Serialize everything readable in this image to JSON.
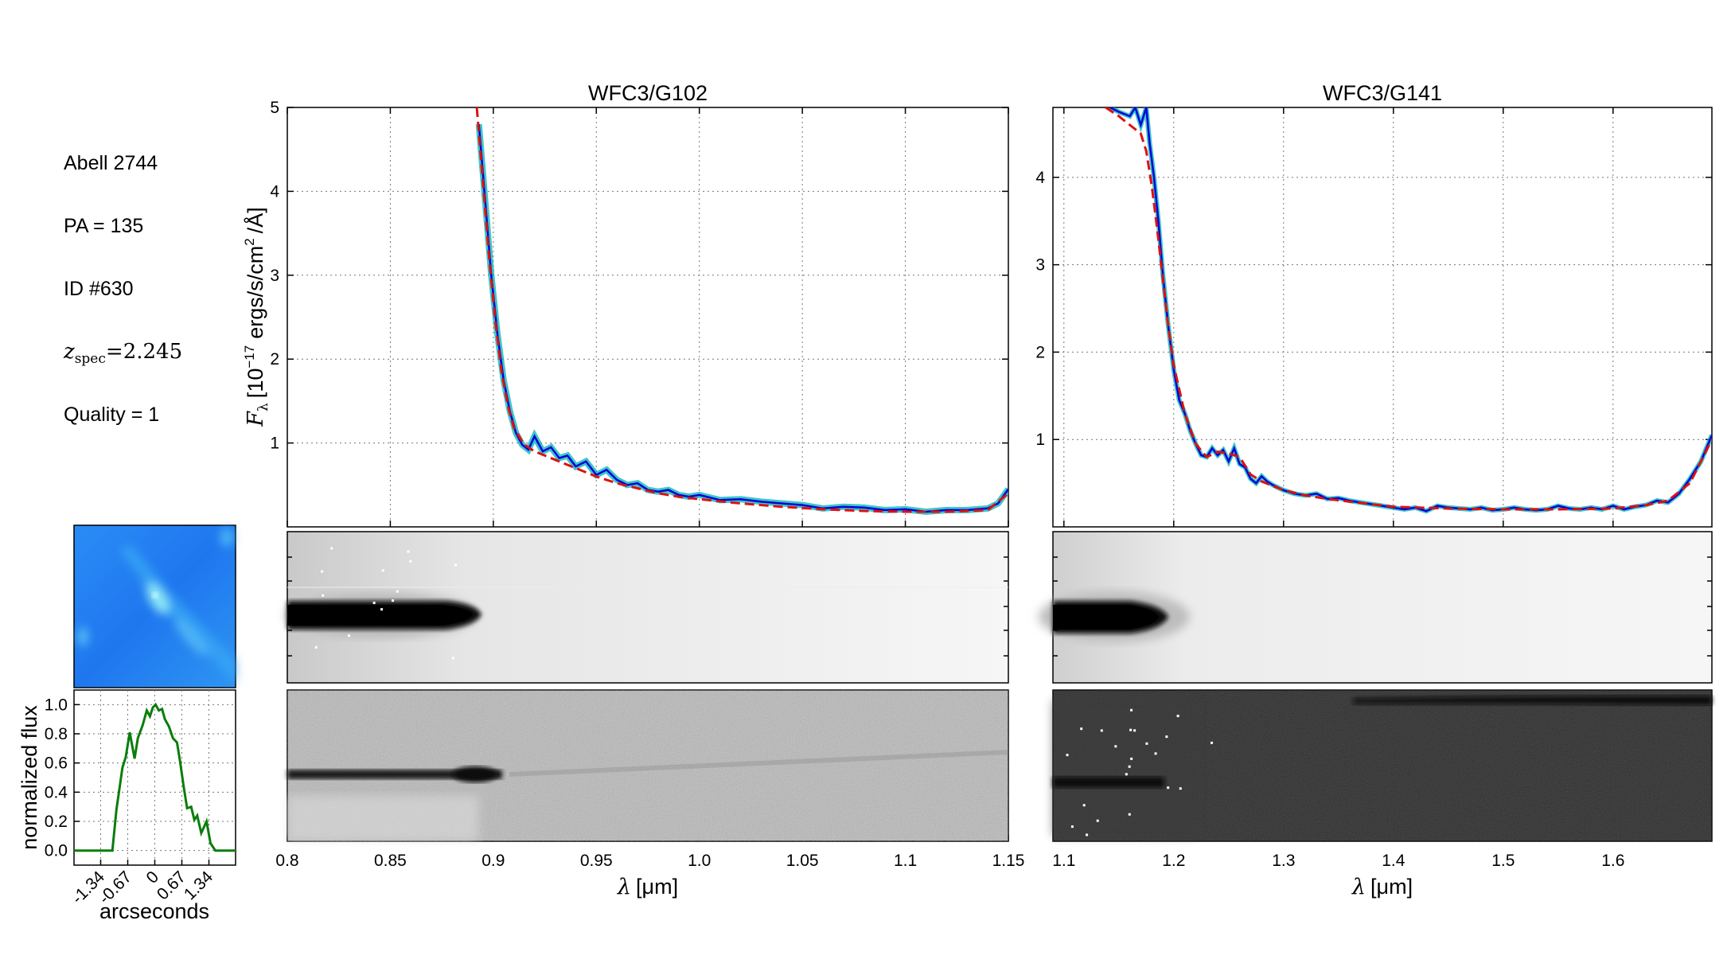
{
  "meta": {
    "field": "Abell 2744",
    "pa": "PA = 135",
    "id": "ID #630",
    "z_symbol": "z",
    "z_sub": "spec",
    "z_value": "=2.245",
    "quality": "Quality = 1"
  },
  "colors": {
    "observed": "#0000dd",
    "observed_error": "#00b3b3",
    "model": "#dd1111",
    "profile": "#0a7d0a",
    "thumb_bg": "#1e7cf0",
    "thumb_streak": "#7fe0f5"
  },
  "chart_data": [
    {
      "id": "g102",
      "type": "line",
      "title": "WFC3/G102",
      "xlabel_symbol": "λ",
      "xlabel_unit": "[μm]",
      "ylabel_main": "F",
      "ylabel_sub": "λ",
      "ylabel_rest": "[10",
      "ylabel_exp": "−17",
      "ylabel_units": "ergs/s/cm",
      "ylabel_sq": "2",
      "ylabel_tail": "/Å]",
      "xlim": [
        0.8,
        1.15
      ],
      "ylim": [
        0,
        5
      ],
      "xticks": [
        0.8,
        0.85,
        0.9,
        0.95,
        1.0,
        1.05,
        1.1,
        1.15
      ],
      "xticklabels": [
        "0.8",
        "0.85",
        "0.9",
        "0.95",
        "1.0",
        "1.05",
        "1.1",
        "1.15"
      ],
      "yticks": [
        1,
        2,
        3,
        4,
        5
      ],
      "yticklabels": [
        "1",
        "2",
        "3",
        "4",
        "5"
      ],
      "grid": true,
      "series": [
        {
          "name": "observed",
          "style": "solid",
          "x": [
            0.893,
            0.896,
            0.899,
            0.902,
            0.905,
            0.908,
            0.911,
            0.914,
            0.917,
            0.92,
            0.924,
            0.928,
            0.932,
            0.936,
            0.94,
            0.945,
            0.95,
            0.955,
            0.96,
            0.965,
            0.97,
            0.975,
            0.98,
            0.985,
            0.99,
            0.995,
            1.0,
            1.01,
            1.02,
            1.03,
            1.04,
            1.05,
            1.06,
            1.07,
            1.08,
            1.09,
            1.1,
            1.11,
            1.12,
            1.13,
            1.14,
            1.145,
            1.15
          ],
          "y": [
            4.8,
            3.9,
            3.0,
            2.3,
            1.75,
            1.38,
            1.12,
            0.98,
            0.92,
            1.08,
            0.9,
            0.95,
            0.82,
            0.85,
            0.72,
            0.78,
            0.62,
            0.68,
            0.56,
            0.5,
            0.52,
            0.44,
            0.42,
            0.44,
            0.38,
            0.36,
            0.38,
            0.32,
            0.33,
            0.3,
            0.28,
            0.26,
            0.22,
            0.24,
            0.23,
            0.2,
            0.21,
            0.18,
            0.2,
            0.2,
            0.22,
            0.28,
            0.45
          ]
        },
        {
          "name": "model",
          "style": "dashed",
          "x": [
            0.892,
            0.895,
            0.898,
            0.901,
            0.904,
            0.907,
            0.91,
            0.915,
            0.92,
            0.93,
            0.94,
            0.95,
            0.96,
            0.97,
            0.98,
            0.99,
            1.0,
            1.02,
            1.04,
            1.06,
            1.08,
            1.1,
            1.12,
            1.14,
            1.15
          ],
          "y": [
            5.0,
            4.1,
            3.2,
            2.45,
            1.85,
            1.45,
            1.18,
            0.98,
            0.9,
            0.8,
            0.7,
            0.6,
            0.52,
            0.46,
            0.4,
            0.36,
            0.33,
            0.28,
            0.24,
            0.21,
            0.19,
            0.18,
            0.18,
            0.2,
            0.4
          ]
        }
      ]
    },
    {
      "id": "g141",
      "type": "line",
      "title": "WFC3/G141",
      "xlabel_symbol": "λ",
      "xlabel_unit": "[μm]",
      "xlim": [
        1.09,
        1.69
      ],
      "ylim": [
        0,
        4.8
      ],
      "xticks": [
        1.1,
        1.2,
        1.3,
        1.4,
        1.5,
        1.6
      ],
      "xticklabels": [
        "1.1",
        "1.2",
        "1.3",
        "1.4",
        "1.5",
        "1.6"
      ],
      "yticks": [
        1,
        2,
        3,
        4
      ],
      "yticklabels": [
        "1",
        "2",
        "3",
        "4"
      ],
      "grid": true,
      "series": [
        {
          "name": "observed",
          "style": "solid",
          "x": [
            1.142,
            1.15,
            1.16,
            1.165,
            1.17,
            1.175,
            1.178,
            1.182,
            1.186,
            1.19,
            1.195,
            1.2,
            1.205,
            1.21,
            1.215,
            1.22,
            1.225,
            1.23,
            1.235,
            1.24,
            1.245,
            1.25,
            1.255,
            1.26,
            1.265,
            1.27,
            1.275,
            1.28,
            1.285,
            1.29,
            1.3,
            1.31,
            1.32,
            1.33,
            1.34,
            1.35,
            1.36,
            1.37,
            1.38,
            1.39,
            1.4,
            1.41,
            1.42,
            1.43,
            1.44,
            1.45,
            1.46,
            1.47,
            1.48,
            1.49,
            1.5,
            1.51,
            1.52,
            1.53,
            1.54,
            1.55,
            1.56,
            1.57,
            1.58,
            1.59,
            1.6,
            1.61,
            1.62,
            1.63,
            1.64,
            1.65,
            1.66,
            1.67,
            1.68,
            1.69
          ],
          "y": [
            4.8,
            4.75,
            4.7,
            4.8,
            4.6,
            4.8,
            4.4,
            4.0,
            3.5,
            2.9,
            2.3,
            1.8,
            1.45,
            1.3,
            1.1,
            0.95,
            0.82,
            0.8,
            0.9,
            0.82,
            0.88,
            0.75,
            0.9,
            0.72,
            0.68,
            0.55,
            0.5,
            0.58,
            0.52,
            0.48,
            0.42,
            0.38,
            0.36,
            0.38,
            0.32,
            0.33,
            0.3,
            0.28,
            0.26,
            0.24,
            0.22,
            0.2,
            0.22,
            0.18,
            0.24,
            0.22,
            0.21,
            0.2,
            0.22,
            0.19,
            0.2,
            0.22,
            0.2,
            0.19,
            0.2,
            0.24,
            0.21,
            0.2,
            0.22,
            0.2,
            0.24,
            0.2,
            0.23,
            0.25,
            0.3,
            0.28,
            0.38,
            0.55,
            0.75,
            1.05
          ]
        },
        {
          "name": "model",
          "style": "dashed",
          "x": [
            1.138,
            1.15,
            1.16,
            1.17,
            1.175,
            1.18,
            1.185,
            1.19,
            1.195,
            1.2,
            1.21,
            1.22,
            1.23,
            1.24,
            1.25,
            1.26,
            1.27,
            1.28,
            1.3,
            1.32,
            1.34,
            1.36,
            1.38,
            1.4,
            1.45,
            1.5,
            1.55,
            1.6,
            1.63,
            1.65,
            1.67,
            1.69
          ],
          "y": [
            4.8,
            4.7,
            4.6,
            4.5,
            4.3,
            3.9,
            3.4,
            2.85,
            2.3,
            1.85,
            1.3,
            0.95,
            0.8,
            0.86,
            0.84,
            0.8,
            0.6,
            0.52,
            0.42,
            0.36,
            0.32,
            0.29,
            0.26,
            0.23,
            0.21,
            0.2,
            0.2,
            0.21,
            0.25,
            0.3,
            0.5,
            1.0
          ]
        }
      ]
    },
    {
      "id": "profile",
      "type": "line",
      "ylabel": "normalized flux",
      "xlabel": "arcseconds",
      "xlim": [
        -2.0,
        2.0
      ],
      "ylim": [
        -0.1,
        1.1
      ],
      "xticks": [
        -1.34,
        -0.67,
        0,
        0.67,
        1.34
      ],
      "xticklabels": [
        "-1.34",
        "-0.67",
        "0",
        "0.67",
        "1.34"
      ],
      "yticks": [
        0.0,
        0.2,
        0.4,
        0.6,
        0.8,
        1.0
      ],
      "yticklabels": [
        "0.0",
        "0.2",
        "0.4",
        "0.6",
        "0.8",
        "1.0"
      ],
      "grid": true,
      "series": [
        {
          "name": "profile",
          "x": [
            -2.0,
            -1.5,
            -1.05,
            -0.95,
            -0.8,
            -0.72,
            -0.62,
            -0.5,
            -0.42,
            -0.3,
            -0.2,
            -0.12,
            -0.05,
            0.02,
            0.1,
            0.18,
            0.25,
            0.35,
            0.45,
            0.55,
            0.62,
            0.72,
            0.8,
            0.9,
            0.98,
            1.05,
            1.15,
            1.28,
            1.38,
            1.5,
            1.6,
            2.0
          ],
          "y": [
            0.0,
            0.0,
            0.0,
            0.28,
            0.57,
            0.64,
            0.81,
            0.63,
            0.77,
            0.86,
            0.96,
            0.92,
            0.98,
            1.0,
            0.96,
            0.97,
            0.9,
            0.85,
            0.77,
            0.74,
            0.62,
            0.43,
            0.29,
            0.3,
            0.21,
            0.24,
            0.12,
            0.2,
            0.05,
            0.0,
            0.0,
            0.0
          ]
        }
      ]
    }
  ]
}
